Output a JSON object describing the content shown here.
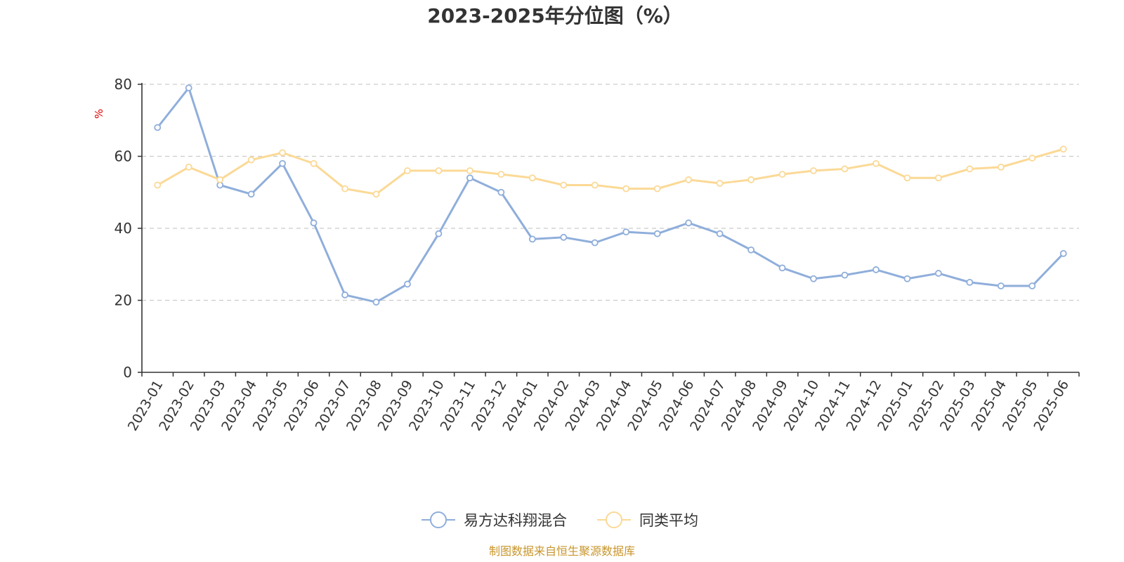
{
  "chart_data": {
    "type": "line",
    "title": "2023-2025年分位图（%）",
    "ylabel": "%",
    "ylim": [
      0,
      80
    ],
    "yticks": [
      "0",
      "20",
      "40",
      "60",
      "80"
    ],
    "grid": true,
    "legend_position": "bottom",
    "categories": [
      "2023-01",
      "2023-02",
      "2023-03",
      "2023-04",
      "2023-05",
      "2023-06",
      "2023-07",
      "2023-08",
      "2023-09",
      "2023-10",
      "2023-11",
      "2023-12",
      "2024-01",
      "2024-02",
      "2024-03",
      "2024-04",
      "2024-05",
      "2024-06",
      "2024-07",
      "2024-08",
      "2024-09",
      "2024-10",
      "2024-11",
      "2024-12",
      "2025-01",
      "2025-02",
      "2025-03",
      "2025-04",
      "2025-05",
      "2025-06"
    ],
    "series": [
      {
        "name": "易方达科翔混合",
        "color": "#8faedb",
        "values": [
          68,
          79,
          52,
          49.5,
          58,
          41.5,
          21.5,
          19.5,
          24.5,
          38.5,
          54,
          50,
          37,
          37.5,
          36,
          39,
          38.5,
          41.5,
          38.5,
          34,
          29,
          26,
          27,
          28.5,
          26,
          27.5,
          25,
          24,
          24,
          33
        ]
      },
      {
        "name": "同类平均",
        "color": "#fbd996",
        "values": [
          52,
          57,
          53.5,
          59,
          61,
          58,
          51,
          49.5,
          56,
          56,
          56,
          55,
          54,
          52,
          52,
          51,
          51,
          53.5,
          52.5,
          53.5,
          55,
          56,
          56.5,
          58,
          54,
          54,
          56.5,
          57,
          59.5,
          62
        ]
      }
    ]
  },
  "colors": {
    "axis": "#333333",
    "grid": "#cccccc",
    "unit": "#e00000",
    "source": "#c8962c"
  },
  "source_text": "制图数据来自恒生聚源数据库"
}
